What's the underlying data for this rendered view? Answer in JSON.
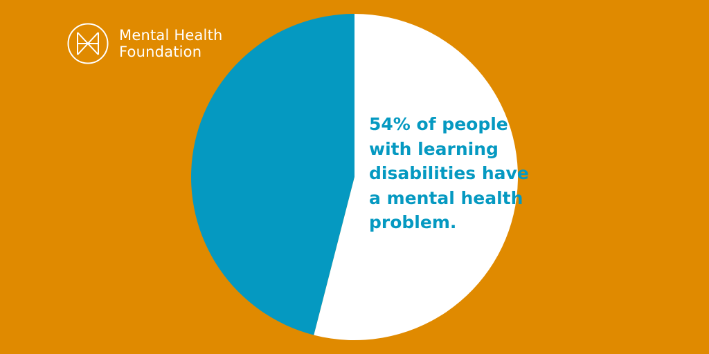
{
  "colors": {
    "background": "#e08a00",
    "accent": "#0599c1",
    "remainder": "#ffffff",
    "logo": "#ffffff"
  },
  "brand": {
    "name_lines": [
      "Mental Health",
      "Foundation"
    ]
  },
  "statement": {
    "lines": [
      "54% of people",
      "with learning",
      "disabilities have",
      "a mental health",
      "problem."
    ]
  },
  "chart_data": {
    "type": "pie",
    "values": [
      46,
      54
    ],
    "colors": [
      "#0599c1",
      "#ffffff"
    ],
    "start": "top",
    "direction": "counterclockwise"
  }
}
